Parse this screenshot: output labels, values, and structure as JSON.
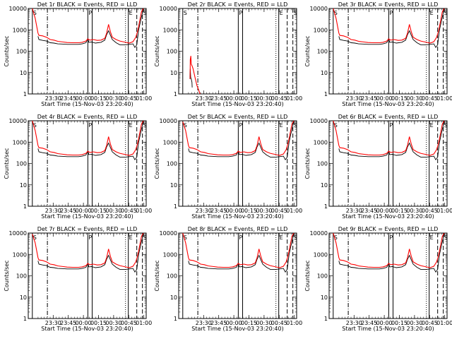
{
  "chart_data": {
    "type": "line",
    "xlabel": "Start Time (15-Nov-03 23:20:40)",
    "ylabel": "Counts/sec",
    "x_ticks": [
      "23:30",
      "23:45",
      "00:00",
      "00:15",
      "00:30",
      "00:45",
      "01:00"
    ],
    "y_ticks": [
      "1",
      "10",
      "100",
      "1000",
      "10000"
    ],
    "y_scale": "log",
    "ylim": [
      1,
      10000
    ],
    "x_range_minutes": [
      -20.67,
      42
    ],
    "markers": [
      {
        "label": "S",
        "x": -18.5,
        "style": "solid"
      },
      {
        "label": "",
        "x": -10.5,
        "style": "dashdot"
      },
      {
        "label": "P",
        "x": 11,
        "style": "solid"
      },
      {
        "label": "",
        "x": 13.3,
        "style": "solid"
      },
      {
        "label": "",
        "x": 31,
        "style": "dotted"
      },
      {
        "label": "E",
        "x": 32.5,
        "style": "solid"
      },
      {
        "label": "",
        "x": 37,
        "style": "dashed"
      },
      {
        "label": "S",
        "x": 40,
        "style": "dashed"
      }
    ],
    "series_colors": {
      "events": "#000000",
      "lld": "#ff0000"
    },
    "panels": [
      {
        "title": "Det 1r BLACK = Events, RED = LLD",
        "shape": "normal",
        "lld_start": 10000
      },
      {
        "title": "Det 2r BLACK = Events, RED = LLD",
        "shape": "drop"
      },
      {
        "title": "Det 3r BLACK = Events, RED = LLD",
        "shape": "normal",
        "lld_start": 10000
      },
      {
        "title": "Det 4r BLACK = Events, RED = LLD",
        "shape": "normal",
        "lld_start": 10000
      },
      {
        "title": "Det 5r BLACK = Events, RED = LLD",
        "shape": "normal",
        "lld_start": 9000
      },
      {
        "title": "Det 6r BLACK = Events, RED = LLD",
        "shape": "normal",
        "lld_start": 10000
      },
      {
        "title": "Det 7r BLACK = Events, RED = LLD",
        "shape": "normal",
        "lld_start": 9000
      },
      {
        "title": "Det 8r BLACK = Events, RED = LLD",
        "shape": "normal",
        "lld_start": 10000
      },
      {
        "title": "Det 9r BLACK = Events, RED = LLD",
        "shape": "normal",
        "lld_start": 10000
      }
    ],
    "profile": {
      "lld": [
        [
          -18.5,
          10000
        ],
        [
          -17,
          3500
        ],
        [
          -15.5,
          700
        ],
        [
          -15,
          550
        ],
        [
          -13,
          520
        ],
        [
          -11,
          450
        ],
        [
          -9,
          350
        ],
        [
          -7,
          330
        ],
        [
          -5,
          290
        ],
        [
          -2,
          270
        ],
        [
          0,
          255
        ],
        [
          3,
          250
        ],
        [
          6,
          250
        ],
        [
          8,
          260
        ],
        [
          10,
          300
        ],
        [
          11,
          380
        ],
        [
          12,
          330
        ],
        [
          14,
          350
        ],
        [
          16,
          320
        ],
        [
          18,
          330
        ],
        [
          20,
          400
        ],
        [
          21,
          700
        ],
        [
          22,
          1800
        ],
        [
          23,
          800
        ],
        [
          24,
          450
        ],
        [
          26,
          350
        ],
        [
          28,
          300
        ],
        [
          31,
          260
        ],
        [
          33,
          240
        ],
        [
          35,
          280
        ],
        [
          36.5,
          450
        ],
        [
          37.5,
          900
        ],
        [
          38.5,
          2500
        ],
        [
          39.5,
          7000
        ],
        [
          40.5,
          10000
        ]
      ],
      "events": [
        [
          -15.5,
          500
        ],
        [
          -15,
          350
        ],
        [
          -13,
          320
        ],
        [
          -11,
          300
        ],
        [
          -9,
          250
        ],
        [
          -7,
          240
        ],
        [
          -5,
          220
        ],
        [
          -2,
          215
        ],
        [
          0,
          210
        ],
        [
          3,
          210
        ],
        [
          6,
          210
        ],
        [
          8,
          220
        ],
        [
          10,
          250
        ],
        [
          11,
          400
        ],
        [
          11.5,
          260
        ],
        [
          13,
          270
        ],
        [
          15,
          240
        ],
        [
          18,
          260
        ],
        [
          20,
          330
        ],
        [
          21,
          600
        ],
        [
          22,
          900
        ],
        [
          23,
          550
        ],
        [
          24,
          350
        ],
        [
          26,
          250
        ],
        [
          28,
          200
        ],
        [
          31,
          200
        ],
        [
          33,
          210
        ],
        [
          35,
          220
        ],
        [
          36,
          150
        ],
        [
          37,
          200
        ],
        [
          38,
          1000
        ],
        [
          39.5,
          4000
        ],
        [
          40.5,
          9000
        ]
      ]
    },
    "drop_profile": {
      "lld": [
        [
          -14.6,
          5
        ],
        [
          -14.5,
          40
        ],
        [
          -14.2,
          60
        ],
        [
          -14,
          25
        ],
        [
          -13.5,
          20
        ],
        [
          -13,
          15
        ],
        [
          -12,
          6
        ],
        [
          -11,
          2.5
        ],
        [
          -10,
          1.5
        ],
        [
          -9.3,
          1
        ]
      ],
      "events": [
        [
          -14.7,
          5
        ],
        [
          -14.5,
          15
        ],
        [
          -14.3,
          6
        ],
        [
          -14,
          5
        ],
        [
          -13.6,
          3.5
        ],
        [
          -13.5,
          2
        ]
      ]
    }
  }
}
